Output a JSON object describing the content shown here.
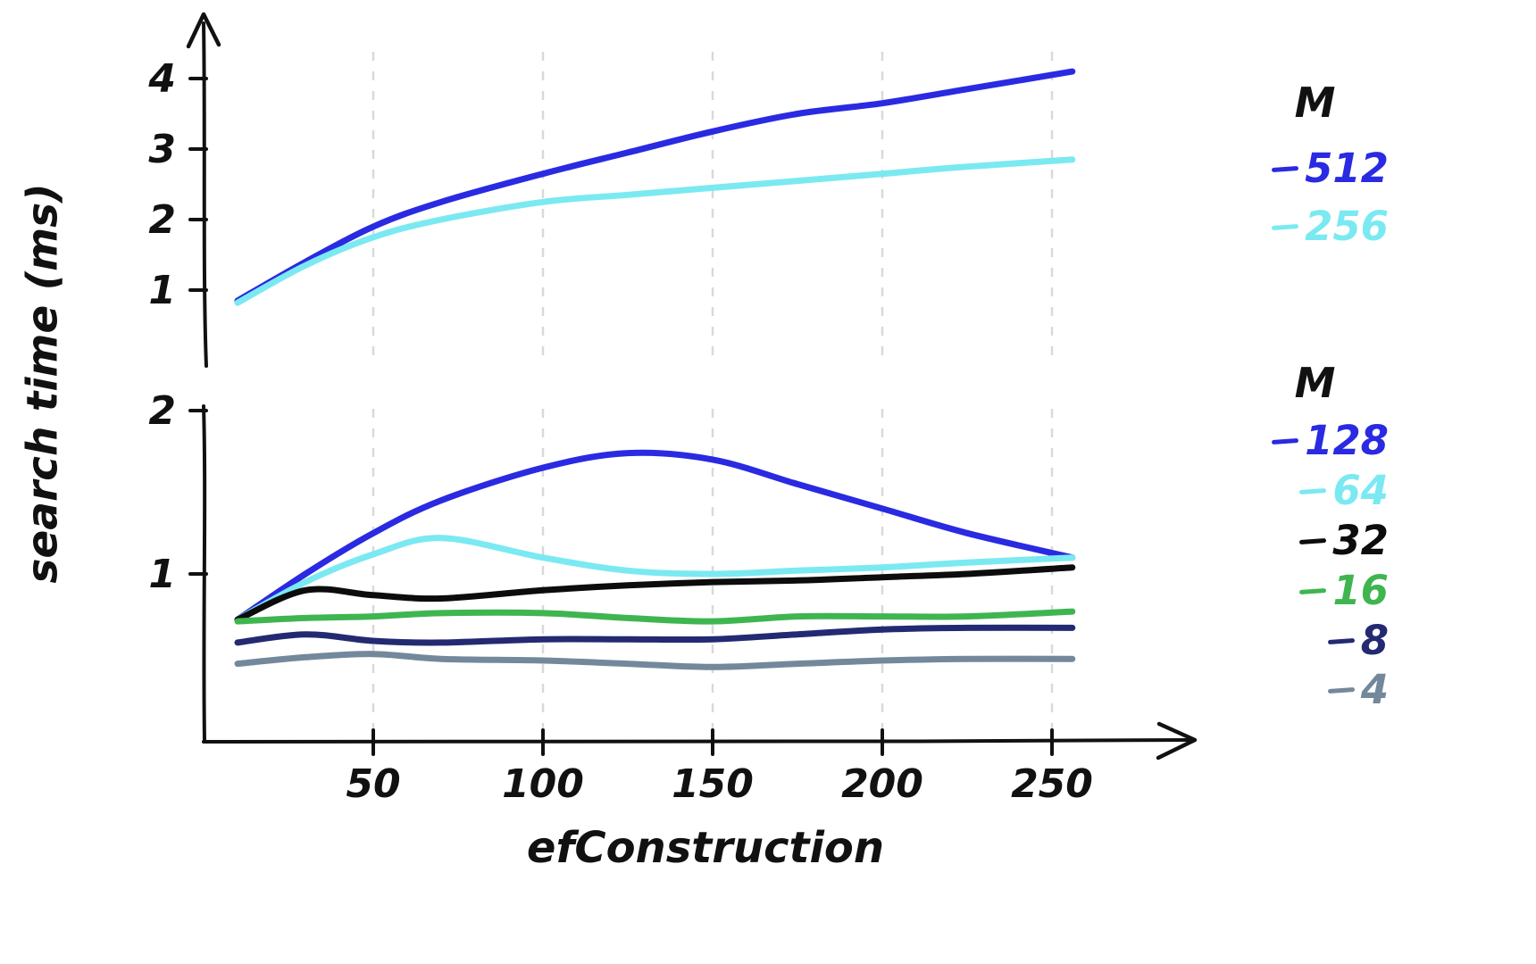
{
  "figure": {
    "x_label": "efConstruction",
    "y_label": "search time (ms)"
  },
  "style": {
    "background": "#ffffff",
    "axis_color": "#111111",
    "grid_color": "#d9d9d9"
  },
  "chart_data": [
    {
      "type": "line",
      "panel": "top",
      "legend_title": "M",
      "legend_position": "right",
      "xlabel": "efConstruction",
      "ylabel": "search time (ms)",
      "x_ticks": [
        50,
        100,
        150,
        200,
        250
      ],
      "y_ticks": [
        1,
        2,
        3,
        4
      ],
      "xlim": [
        0,
        300
      ],
      "ylim": [
        0,
        4.9
      ],
      "grid": "vertical-dashed",
      "x": [
        10,
        30,
        50,
        70,
        100,
        125,
        150,
        175,
        200,
        225,
        256
      ],
      "series": [
        {
          "name": "512",
          "color": "#2a2ae2",
          "values": [
            0.85,
            1.4,
            1.9,
            2.25,
            2.65,
            2.95,
            3.25,
            3.5,
            3.65,
            3.85,
            4.1
          ]
        },
        {
          "name": "256",
          "color": "#7be9f2",
          "values": [
            0.82,
            1.35,
            1.75,
            2.0,
            2.25,
            2.35,
            2.45,
            2.55,
            2.65,
            2.75,
            2.85
          ]
        }
      ]
    },
    {
      "type": "line",
      "panel": "bottom",
      "legend_title": "M",
      "legend_position": "right",
      "xlabel": "efConstruction",
      "ylabel": "search time (ms)",
      "x_ticks": [
        50,
        100,
        150,
        200,
        250
      ],
      "y_ticks": [
        1,
        2
      ],
      "xlim": [
        0,
        300
      ],
      "ylim": [
        0,
        2.05
      ],
      "grid": "vertical-dashed",
      "x": [
        10,
        30,
        50,
        70,
        100,
        125,
        150,
        175,
        200,
        225,
        256
      ],
      "series": [
        {
          "name": "128",
          "color": "#2a2ae2",
          "values": [
            0.72,
            1.0,
            1.25,
            1.45,
            1.65,
            1.74,
            1.7,
            1.55,
            1.4,
            1.25,
            1.1
          ]
        },
        {
          "name": "64",
          "color": "#7be9f2",
          "values": [
            0.72,
            0.95,
            1.12,
            1.22,
            1.1,
            1.02,
            1.0,
            1.02,
            1.04,
            1.07,
            1.1
          ]
        },
        {
          "name": "32",
          "color": "#0c0c0c",
          "values": [
            0.72,
            0.9,
            0.87,
            0.85,
            0.9,
            0.93,
            0.95,
            0.96,
            0.98,
            1.0,
            1.04
          ]
        },
        {
          "name": "16",
          "color": "#3fb550",
          "values": [
            0.71,
            0.73,
            0.74,
            0.76,
            0.76,
            0.73,
            0.71,
            0.74,
            0.74,
            0.74,
            0.77
          ]
        },
        {
          "name": "8",
          "color": "#232a72",
          "values": [
            0.58,
            0.63,
            0.59,
            0.58,
            0.6,
            0.6,
            0.6,
            0.63,
            0.66,
            0.67,
            0.67
          ]
        },
        {
          "name": "4",
          "color": "#74889c",
          "values": [
            0.45,
            0.49,
            0.51,
            0.48,
            0.47,
            0.45,
            0.43,
            0.45,
            0.47,
            0.48,
            0.48
          ]
        }
      ]
    }
  ]
}
